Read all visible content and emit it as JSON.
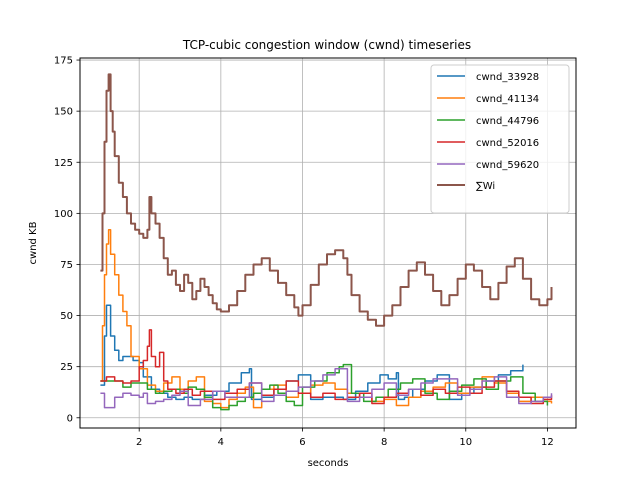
{
  "chart_data": {
    "type": "line",
    "title": "TCP-cubic congestion window (cwnd) timeseries",
    "xlabel": "seconds",
    "ylabel": "cwnd KB",
    "xlim": [
      0.55,
      12.7
    ],
    "ylim": [
      -5,
      176
    ],
    "xticks": [
      2,
      4,
      6,
      8,
      10,
      12
    ],
    "yticks": [
      0,
      25,
      50,
      75,
      100,
      125,
      150,
      175
    ],
    "grid": true,
    "legend_position": "top-right",
    "series": [
      {
        "name": "cwnd_33928",
        "color": "#1f77b4",
        "x": [
          1.05,
          1.15,
          1.2,
          1.3,
          1.4,
          1.5,
          1.6,
          1.7,
          1.85,
          2.0,
          2.1,
          2.3,
          2.5,
          2.7,
          2.9,
          3.1,
          3.3,
          3.6,
          3.9,
          4.2,
          4.5,
          4.7,
          4.75,
          5.0,
          5.3,
          5.6,
          5.9,
          6.2,
          6.5,
          6.8,
          7.0,
          7.3,
          7.6,
          7.9,
          8.1,
          8.3,
          8.35,
          8.5,
          8.7,
          9.0,
          9.3,
          9.6,
          9.9,
          10.2,
          10.5,
          10.8,
          11.1,
          11.4
        ],
        "y": [
          16,
          40,
          55,
          40,
          33,
          28,
          30,
          30,
          28,
          27,
          20,
          14,
          12,
          10,
          9,
          10,
          9,
          11,
          13,
          17,
          22,
          24,
          9,
          10,
          14,
          18,
          21,
          9,
          10,
          10,
          9,
          13,
          17,
          21,
          19,
          22,
          9,
          10,
          14,
          18,
          21,
          9,
          12,
          15,
          18,
          21,
          23,
          26
        ]
      },
      {
        "name": "cwnd_41134",
        "color": "#ff7f0e",
        "x": [
          1.05,
          1.1,
          1.15,
          1.2,
          1.25,
          1.3,
          1.4,
          1.5,
          1.6,
          1.7,
          1.8,
          2.0,
          2.2,
          2.4,
          2.6,
          2.8,
          3.0,
          3.2,
          3.4,
          3.6,
          3.8,
          4.0,
          4.2,
          4.4,
          4.6,
          4.8,
          5.0,
          5.3,
          5.6,
          5.9,
          6.2,
          6.5,
          6.8,
          7.1,
          7.4,
          7.7,
          8.0,
          8.3,
          8.6,
          8.9,
          9.2,
          9.5,
          9.8,
          10.1,
          10.4,
          10.7,
          11.0,
          11.3,
          11.6,
          11.9,
          12.1
        ],
        "y": [
          18,
          45,
          70,
          85,
          92,
          80,
          70,
          60,
          52,
          45,
          30,
          24,
          16,
          13,
          17,
          20,
          14,
          18,
          20,
          8,
          7,
          5,
          9,
          12,
          15,
          5,
          14,
          16,
          10,
          12,
          16,
          17,
          14,
          12,
          10,
          8,
          9,
          6,
          10,
          13,
          15,
          17,
          12,
          15,
          20,
          17,
          12,
          8,
          10,
          8,
          7
        ]
      },
      {
        "name": "cwnd_44796",
        "color": "#2ca02c",
        "x": [
          1.05,
          1.2,
          1.4,
          1.6,
          1.8,
          2.0,
          2.2,
          2.4,
          2.6,
          2.8,
          3.0,
          3.2,
          3.4,
          3.6,
          3.8,
          4.0,
          4.2,
          4.4,
          4.6,
          4.8,
          5.0,
          5.2,
          5.4,
          5.6,
          5.8,
          6.0,
          6.3,
          6.6,
          6.9,
          7.0,
          7.2,
          7.5,
          7.8,
          8.1,
          8.4,
          8.7,
          9.0,
          9.3,
          9.6,
          9.9,
          10.2,
          10.5,
          10.8,
          11.1,
          11.4,
          11.7,
          12.0
        ],
        "y": [
          18,
          18,
          18,
          15,
          17,
          17,
          14,
          12,
          13,
          14,
          12,
          15,
          14,
          10,
          5,
          4,
          6,
          8,
          10,
          12,
          14,
          16,
          12,
          8,
          6,
          15,
          18,
          22,
          25,
          26,
          12,
          8,
          10,
          14,
          17,
          19,
          12,
          9,
          13,
          16,
          19,
          14,
          18,
          20,
          12,
          8,
          6
        ]
      },
      {
        "name": "cwnd_52016",
        "color": "#d62728",
        "x": [
          1.05,
          1.2,
          1.4,
          1.6,
          1.8,
          2.0,
          2.1,
          2.2,
          2.25,
          2.3,
          2.4,
          2.5,
          2.6,
          2.7,
          2.9,
          3.1,
          3.3,
          3.5,
          3.8,
          4.1,
          4.4,
          4.7,
          5.0,
          5.3,
          5.6,
          5.9,
          6.2,
          6.5,
          6.8,
          7.1,
          7.4,
          7.7,
          8.0,
          8.3,
          8.6,
          8.9,
          9.2,
          9.5,
          9.8,
          10.1,
          10.4,
          10.7,
          11.0,
          11.3,
          11.6,
          11.9,
          12.1
        ],
        "y": [
          18,
          20,
          18,
          17,
          18,
          25,
          28,
          35,
          43,
          30,
          25,
          32,
          18,
          14,
          12,
          14,
          11,
          13,
          9,
          12,
          14,
          17,
          11,
          14,
          18,
          12,
          10,
          12,
          9,
          10,
          12,
          7,
          10,
          12,
          14,
          11,
          14,
          12,
          15,
          12,
          15,
          18,
          13,
          10,
          7,
          9,
          11
        ]
      },
      {
        "name": "cwnd_59620",
        "color": "#9467bd",
        "x": [
          1.05,
          1.15,
          1.25,
          1.4,
          1.6,
          1.8,
          2.0,
          2.1,
          2.2,
          2.4,
          2.6,
          2.8,
          3.0,
          3.2,
          3.5,
          3.8,
          4.1,
          4.4,
          4.7,
          5.0,
          5.3,
          5.6,
          5.9,
          6.2,
          6.5,
          6.8,
          7.1,
          7.4,
          7.7,
          8.0,
          8.3,
          8.6,
          8.9,
          9.2,
          9.5,
          9.8,
          10.1,
          10.4,
          10.7,
          11.0,
          11.3,
          11.6,
          11.9,
          12.1
        ],
        "y": [
          12,
          5,
          5,
          10,
          12,
          11,
          10,
          12,
          7,
          8,
          9,
          11,
          13,
          6,
          9,
          13,
          10,
          10,
          17,
          8,
          11,
          13,
          15,
          18,
          21,
          24,
          8,
          10,
          14,
          17,
          11,
          14,
          17,
          19,
          19,
          11,
          14,
          18,
          20,
          10,
          7,
          8,
          10,
          12
        ]
      },
      {
        "name": "∑Wi",
        "color": "#8c564b",
        "thick": true,
        "x": [
          1.05,
          1.1,
          1.15,
          1.2,
          1.25,
          1.3,
          1.35,
          1.4,
          1.5,
          1.6,
          1.7,
          1.8,
          1.9,
          2.0,
          2.1,
          2.2,
          2.25,
          2.3,
          2.4,
          2.5,
          2.6,
          2.7,
          2.8,
          2.9,
          3.0,
          3.1,
          3.2,
          3.3,
          3.4,
          3.5,
          3.6,
          3.7,
          3.8,
          3.9,
          4.0,
          4.2,
          4.4,
          4.6,
          4.8,
          5.0,
          5.2,
          5.4,
          5.6,
          5.8,
          5.9,
          6.0,
          6.2,
          6.4,
          6.6,
          6.8,
          7.0,
          7.1,
          7.2,
          7.4,
          7.6,
          7.8,
          8.0,
          8.2,
          8.4,
          8.6,
          8.8,
          9.0,
          9.2,
          9.4,
          9.6,
          9.8,
          10.0,
          10.2,
          10.4,
          10.6,
          10.8,
          11.0,
          11.2,
          11.4,
          11.6,
          11.8,
          12.0,
          12.1
        ],
        "y": [
          72,
          100,
          135,
          160,
          168,
          150,
          140,
          128,
          115,
          108,
          100,
          95,
          92,
          90,
          88,
          92,
          108,
          100,
          95,
          88,
          78,
          70,
          72,
          65,
          62,
          70,
          66,
          58,
          62,
          68,
          64,
          60,
          56,
          53,
          52,
          55,
          62,
          70,
          75,
          78,
          72,
          66,
          60,
          54,
          50,
          55,
          65,
          75,
          80,
          82,
          78,
          70,
          60,
          52,
          48,
          45,
          50,
          55,
          64,
          72,
          76,
          70,
          62,
          55,
          60,
          68,
          75,
          72,
          64,
          58,
          66,
          74,
          78,
          68,
          58,
          55,
          58,
          64
        ]
      }
    ]
  }
}
